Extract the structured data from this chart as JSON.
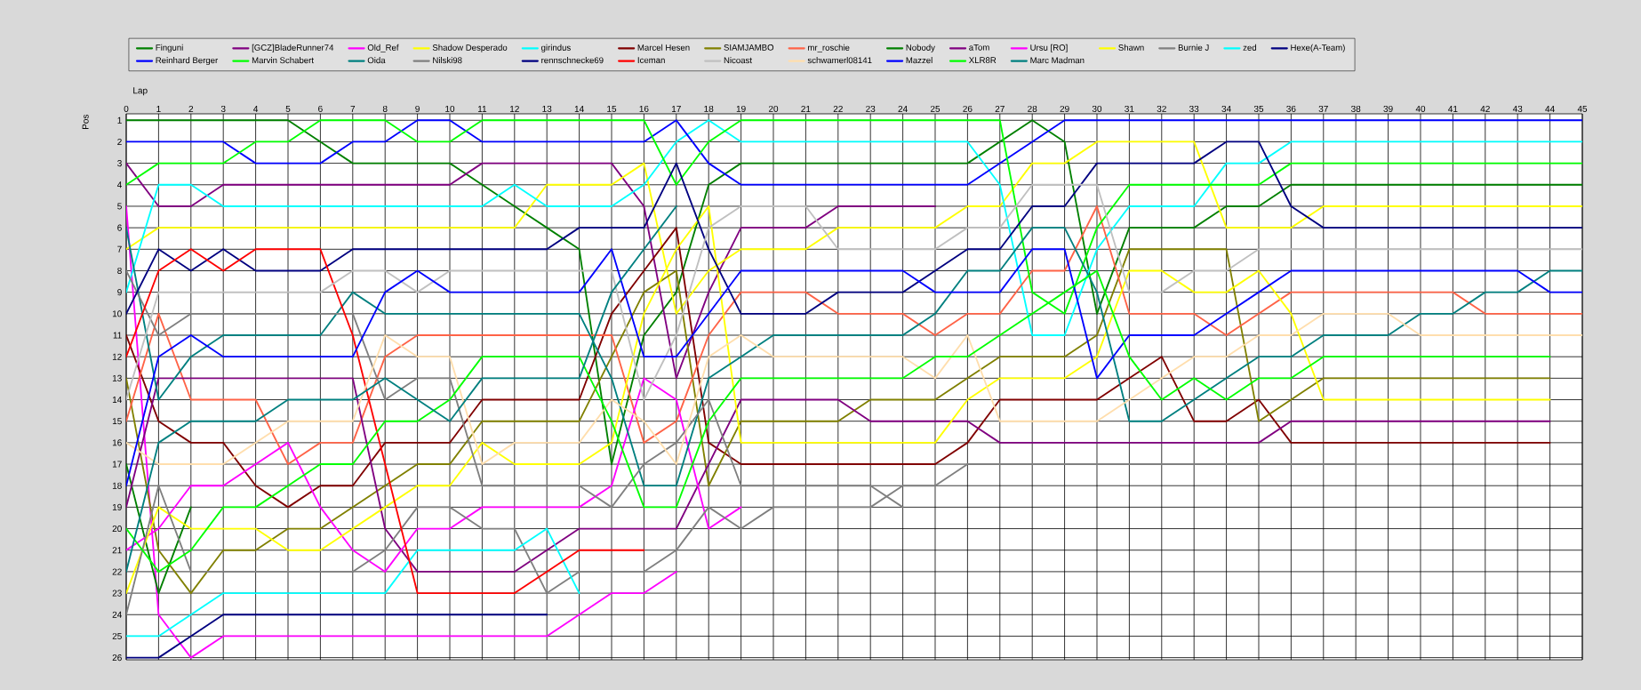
{
  "chart_data": {
    "type": "line",
    "xlabel": "Lap",
    "ylabel": "Pos",
    "x": [
      0,
      1,
      2,
      3,
      4,
      5,
      6,
      7,
      8,
      9,
      10,
      11,
      12,
      13,
      14,
      15,
      16,
      17,
      18,
      19,
      20,
      21,
      22,
      23,
      24,
      25,
      26,
      27,
      28,
      29,
      30,
      31,
      32,
      33,
      34,
      35,
      36,
      37,
      38,
      39,
      40,
      41,
      42,
      43,
      44,
      45
    ],
    "xlim": [
      0,
      45
    ],
    "xticks": [
      0,
      1,
      2,
      3,
      4,
      5,
      6,
      7,
      8,
      9,
      10,
      11,
      12,
      13,
      14,
      15,
      16,
      17,
      18,
      19,
      20,
      21,
      22,
      23,
      24,
      25,
      26,
      27,
      28,
      29,
      30,
      31,
      32,
      33,
      34,
      35,
      36,
      37,
      38,
      39,
      40,
      41,
      42,
      43,
      44,
      45
    ],
    "ylim": [
      26.1,
      0.7
    ],
    "yticks": [
      1,
      2,
      3,
      4,
      5,
      6,
      7,
      8,
      9,
      10,
      11,
      12,
      13,
      14,
      15,
      16,
      17,
      18,
      19,
      20,
      21,
      22,
      23,
      24,
      25,
      26
    ],
    "grid": true,
    "legend": "top",
    "series": [
      {
        "name": "Finguni",
        "color": "#008000",
        "values": [
          1,
          1,
          1,
          1,
          1,
          1,
          2,
          3,
          3,
          3,
          3,
          4,
          5,
          6,
          7,
          17,
          11,
          9,
          4,
          3,
          3,
          3,
          3,
          3,
          3,
          3,
          3,
          2,
          1,
          2,
          10,
          6,
          6,
          6,
          5,
          5,
          4,
          4,
          4,
          4,
          4,
          4,
          4,
          4,
          4,
          4
        ]
      },
      {
        "name": "[GCZ]BladeRunner74",
        "color": "#800080",
        "values": [
          3,
          5,
          5,
          4,
          4,
          4,
          4,
          4,
          4,
          4,
          4,
          3,
          3,
          3,
          3,
          3,
          5,
          13,
          9,
          6,
          6,
          6,
          5,
          5,
          5,
          5,
          null,
          null,
          null,
          null,
          null,
          null,
          null,
          null,
          null,
          null,
          null,
          null,
          null,
          null,
          null,
          null,
          null,
          null,
          null,
          null
        ]
      },
      {
        "name": "Old_Ref",
        "color": "#ff00ff",
        "values": [
          5,
          24,
          26,
          25,
          25,
          25,
          25,
          25,
          25,
          25,
          25,
          25,
          25,
          25,
          24,
          23,
          23,
          22,
          null,
          null,
          null,
          null,
          null,
          null,
          null,
          null,
          null,
          null,
          null,
          null,
          null,
          null,
          null,
          null,
          null,
          null,
          null,
          null,
          null,
          null,
          null,
          null,
          null,
          null,
          null,
          null
        ]
      },
      {
        "name": "Shadow Desperado",
        "color": "#ffff00",
        "values": [
          7,
          6,
          6,
          6,
          6,
          6,
          6,
          6,
          6,
          6,
          6,
          6,
          6,
          4,
          4,
          4,
          3,
          10,
          8,
          7,
          7,
          7,
          6,
          6,
          6,
          6,
          5,
          5,
          3,
          3,
          2,
          2,
          2,
          2,
          6,
          6,
          6,
          5,
          5,
          5,
          5,
          5,
          5,
          5,
          5,
          5
        ]
      },
      {
        "name": "girindus",
        "color": "#00ffff",
        "values": [
          9,
          4,
          4,
          5,
          5,
          5,
          5,
          5,
          5,
          5,
          5,
          5,
          4,
          5,
          5,
          5,
          4,
          2,
          1,
          2,
          2,
          2,
          2,
          2,
          2,
          2,
          2,
          4,
          11,
          11,
          7,
          5,
          5,
          5,
          3,
          3,
          2,
          2,
          2,
          2,
          2,
          2,
          2,
          2,
          2,
          2
        ]
      },
      {
        "name": "Marcel Hesen",
        "color": "#800000",
        "values": [
          11,
          15,
          16,
          16,
          18,
          19,
          18,
          18,
          16,
          16,
          16,
          14,
          14,
          14,
          14,
          10,
          8,
          6,
          16,
          17,
          17,
          17,
          17,
          17,
          17,
          17,
          16,
          14,
          14,
          14,
          14,
          13,
          12,
          15,
          15,
          14,
          16,
          16,
          16,
          16,
          16,
          16,
          16,
          16,
          16,
          null
        ]
      },
      {
        "name": "SIAMJAMBO",
        "color": "#808000",
        "values": [
          13,
          21,
          23,
          21,
          21,
          20,
          20,
          19,
          18,
          17,
          17,
          15,
          15,
          15,
          15,
          12,
          9,
          8,
          18,
          15,
          15,
          15,
          15,
          14,
          14,
          14,
          13,
          12,
          12,
          12,
          11,
          7,
          7,
          7,
          7,
          15,
          14,
          13,
          13,
          13,
          13,
          13,
          13,
          13,
          13,
          null
        ]
      },
      {
        "name": "mr_roschie",
        "color": "#ff6347",
        "values": [
          15,
          10,
          14,
          14,
          14,
          17,
          16,
          16,
          12,
          11,
          11,
          11,
          11,
          11,
          11,
          11,
          16,
          15,
          11,
          9,
          9,
          9,
          10,
          10,
          10,
          11,
          10,
          10,
          8,
          8,
          5,
          10,
          10,
          10,
          11,
          10,
          9,
          9,
          9,
          9,
          9,
          9,
          10,
          10,
          10,
          10
        ]
      },
      {
        "name": "Nobody",
        "color": "#008000",
        "values": [
          17,
          23,
          19,
          null,
          null,
          null,
          null,
          null,
          null,
          null,
          null,
          null,
          null,
          null,
          null,
          null,
          null,
          null,
          null,
          null,
          null,
          null,
          null,
          null,
          null,
          null,
          null,
          null,
          null,
          null,
          null,
          null,
          null,
          null,
          null,
          null,
          null,
          null,
          null,
          null,
          null,
          null,
          null,
          null,
          null,
          null
        ]
      },
      {
        "name": "aTom",
        "color": "#800080",
        "values": [
          19,
          13,
          13,
          13,
          13,
          13,
          13,
          13,
          20,
          22,
          22,
          22,
          22,
          21,
          20,
          20,
          20,
          20,
          17,
          14,
          14,
          14,
          14,
          15,
          15,
          15,
          15,
          16,
          16,
          16,
          16,
          16,
          16,
          16,
          16,
          16,
          15,
          15,
          15,
          15,
          15,
          15,
          15,
          15,
          15,
          null
        ]
      },
      {
        "name": "Ursu [RO]",
        "color": "#ff00ff",
        "values": [
          21,
          20,
          18,
          18,
          17,
          16,
          19,
          21,
          22,
          20,
          20,
          19,
          19,
          19,
          19,
          18,
          13,
          14,
          20,
          19,
          null,
          null,
          null,
          null,
          null,
          null,
          null,
          null,
          null,
          null,
          null,
          null,
          null,
          null,
          null,
          null,
          null,
          null,
          null,
          null,
          null,
          null,
          null,
          null,
          null,
          null
        ]
      },
      {
        "name": "Shawn",
        "color": "#ffff00",
        "values": [
          23,
          19,
          20,
          20,
          20,
          21,
          21,
          20,
          19,
          18,
          18,
          16,
          17,
          17,
          17,
          16,
          10,
          7,
          5,
          16,
          16,
          16,
          16,
          16,
          16,
          16,
          14,
          13,
          13,
          13,
          12,
          8,
          8,
          9,
          9,
          8,
          10,
          14,
          14,
          14,
          14,
          14,
          14,
          14,
          14,
          null
        ]
      },
      {
        "name": "Burnie J",
        "color": "#808080",
        "values": [
          24,
          18,
          22,
          22,
          22,
          22,
          22,
          22,
          21,
          19,
          19,
          20,
          20,
          23,
          22,
          22,
          22,
          21,
          19,
          20,
          19,
          19,
          19,
          19,
          18,
          18,
          17,
          17,
          17,
          17,
          17,
          17,
          17,
          17,
          17,
          17,
          17,
          17,
          17,
          null,
          null,
          null,
          null,
          null,
          null,
          null
        ]
      },
      {
        "name": "zed",
        "color": "#00ffff",
        "values": [
          25,
          25,
          24,
          23,
          23,
          23,
          23,
          23,
          23,
          21,
          21,
          21,
          21,
          20,
          23,
          null,
          null,
          null,
          null,
          null,
          null,
          null,
          null,
          null,
          null,
          null,
          null,
          null,
          null,
          null,
          null,
          null,
          null,
          null,
          null,
          null,
          null,
          null,
          null,
          null,
          null,
          null,
          null,
          null,
          null,
          null
        ]
      },
      {
        "name": "Hexe(A-Team)",
        "color": "#000080",
        "values": [
          26,
          26,
          25,
          24,
          24,
          24,
          24,
          24,
          24,
          24,
          24,
          24,
          24,
          24,
          null,
          null,
          null,
          null,
          null,
          null,
          null,
          null,
          null,
          null,
          null,
          null,
          null,
          null,
          null,
          null,
          null,
          null,
          null,
          null,
          null,
          null,
          null,
          null,
          null,
          null,
          null,
          null,
          null,
          null,
          null,
          null
        ]
      },
      {
        "name": "Reinhard Berger",
        "color": "#0000ff",
        "values": [
          2,
          2,
          2,
          2,
          3,
          3,
          3,
          2,
          2,
          1,
          1,
          2,
          2,
          2,
          2,
          2,
          2,
          1,
          3,
          4,
          4,
          4,
          4,
          4,
          4,
          4,
          4,
          3,
          2,
          1,
          1,
          1,
          1,
          1,
          1,
          1,
          1,
          1,
          1,
          1,
          1,
          1,
          1,
          1,
          1,
          1
        ]
      },
      {
        "name": "Marvin Schabert",
        "color": "#00ff00",
        "values": [
          4,
          3,
          3,
          3,
          2,
          2,
          1,
          1,
          1,
          2,
          2,
          1,
          1,
          1,
          1,
          1,
          1,
          4,
          2,
          1,
          1,
          1,
          1,
          1,
          1,
          1,
          1,
          1,
          9,
          10,
          6,
          4,
          4,
          4,
          4,
          4,
          3,
          3,
          3,
          3,
          3,
          3,
          3,
          3,
          3,
          3
        ]
      },
      {
        "name": "Oida",
        "color": "#008080",
        "values": [
          6,
          14,
          12,
          11,
          11,
          11,
          11,
          9,
          10,
          10,
          10,
          10,
          10,
          10,
          10,
          13,
          18,
          18,
          13,
          12,
          11,
          11,
          11,
          11,
          11,
          10,
          8,
          8,
          6,
          6,
          9,
          15,
          15,
          14,
          13,
          12,
          12,
          11,
          11,
          11,
          10,
          10,
          9,
          9,
          8,
          8
        ]
      },
      {
        "name": "Nilski98",
        "color": "#808080",
        "values": [
          8,
          11,
          10,
          10,
          10,
          10,
          10,
          10,
          14,
          13,
          13,
          18,
          18,
          18,
          18,
          19,
          17,
          16,
          14,
          18,
          18,
          18,
          18,
          18,
          19,
          null,
          null,
          null,
          null,
          null,
          null,
          null,
          null,
          null,
          null,
          null,
          null,
          null,
          null,
          null,
          null,
          null,
          null,
          null,
          null,
          null
        ]
      },
      {
        "name": "rennschnecke69",
        "color": "#000080",
        "values": [
          10,
          7,
          8,
          7,
          8,
          8,
          8,
          7,
          7,
          7,
          7,
          7,
          7,
          7,
          6,
          6,
          6,
          3,
          7,
          10,
          10,
          10,
          9,
          9,
          9,
          8,
          7,
          7,
          5,
          5,
          3,
          3,
          3,
          3,
          2,
          2,
          5,
          6,
          6,
          6,
          6,
          6,
          6,
          6,
          6,
          6
        ]
      },
      {
        "name": "Iceman",
        "color": "#ff0000",
        "values": [
          12,
          8,
          7,
          8,
          7,
          7,
          7,
          11,
          17,
          23,
          23,
          23,
          23,
          22,
          21,
          21,
          21,
          null,
          null,
          null,
          null,
          null,
          null,
          null,
          null,
          null,
          null,
          null,
          null,
          null,
          null,
          null,
          null,
          null,
          null,
          null,
          null,
          null,
          null,
          null,
          null,
          null,
          null,
          null,
          null,
          null
        ]
      },
      {
        "name": "Nicoast",
        "color": "#c0c0c0",
        "values": [
          14,
          9,
          9,
          9,
          9,
          9,
          9,
          8,
          8,
          9,
          8,
          8,
          8,
          8,
          8,
          8,
          14,
          11,
          6,
          5,
          5,
          5,
          7,
          7,
          7,
          7,
          6,
          6,
          4,
          4,
          4,
          9,
          9,
          8,
          8,
          7,
          7,
          7,
          7,
          7,
          7,
          7,
          7,
          7,
          7,
          7
        ]
      },
      {
        "name": "schwamerl08141",
        "color": "#ffdead",
        "values": [
          16,
          17,
          17,
          17,
          16,
          15,
          15,
          15,
          11,
          12,
          12,
          17,
          16,
          16,
          16,
          14,
          15,
          17,
          12,
          11,
          12,
          12,
          12,
          12,
          12,
          13,
          11,
          15,
          15,
          15,
          15,
          14,
          13,
          12,
          12,
          11,
          11,
          10,
          10,
          10,
          11,
          11,
          11,
          11,
          11,
          11
        ]
      },
      {
        "name": "Mazzel",
        "color": "#0000ff",
        "values": [
          18,
          12,
          11,
          12,
          12,
          12,
          12,
          12,
          9,
          8,
          9,
          9,
          9,
          9,
          9,
          7,
          12,
          12,
          10,
          8,
          8,
          8,
          8,
          8,
          8,
          9,
          9,
          9,
          7,
          7,
          13,
          11,
          11,
          11,
          10,
          9,
          8,
          8,
          8,
          8,
          8,
          8,
          8,
          8,
          9,
          9
        ]
      },
      {
        "name": "XLR8R",
        "color": "#00ff00",
        "values": [
          20,
          22,
          21,
          19,
          19,
          18,
          17,
          17,
          15,
          15,
          14,
          12,
          12,
          12,
          12,
          15,
          19,
          19,
          15,
          13,
          13,
          13,
          13,
          13,
          13,
          12,
          12,
          11,
          10,
          9,
          8,
          12,
          14,
          13,
          14,
          13,
          13,
          12,
          12,
          12,
          12,
          12,
          12,
          12,
          12,
          null
        ]
      },
      {
        "name": "Marc Madman",
        "color": "#008080",
        "values": [
          22,
          16,
          15,
          15,
          15,
          14,
          14,
          14,
          13,
          14,
          15,
          13,
          13,
          13,
          13,
          9,
          7,
          5,
          null,
          null,
          null,
          null,
          null,
          null,
          null,
          null,
          null,
          null,
          null,
          null,
          null,
          null,
          null,
          null,
          null,
          null,
          null,
          null,
          null,
          null,
          null,
          null,
          null,
          null,
          null,
          null
        ]
      }
    ]
  }
}
